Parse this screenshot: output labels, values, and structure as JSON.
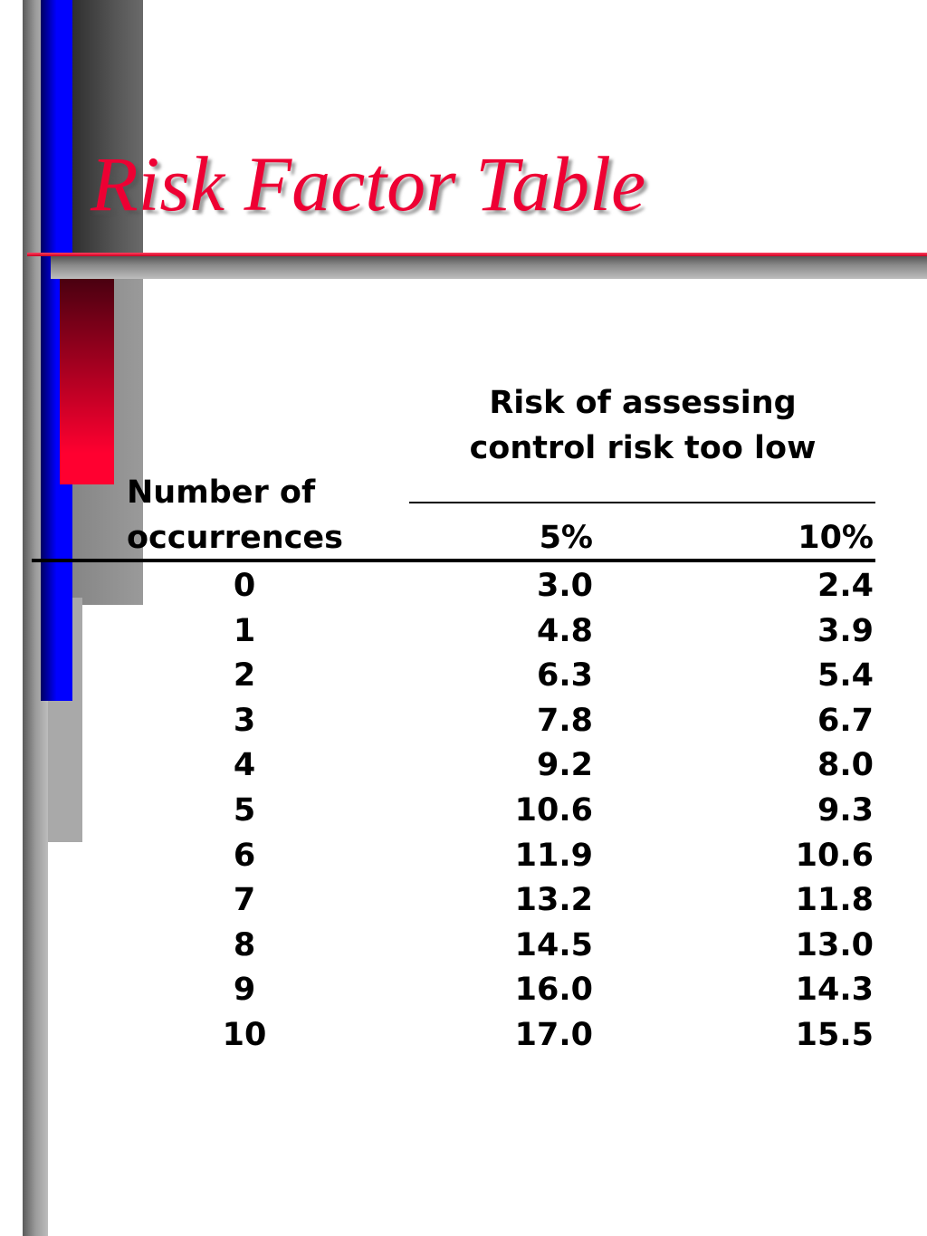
{
  "slide": {
    "title": "Risk Factor Table"
  },
  "table": {
    "group_header_line1": "Risk of assessing",
    "group_header_line2": "control risk too low",
    "row_header_line1": "Number of",
    "row_header_line2": "occurrences",
    "columns": [
      "5%",
      "10%"
    ],
    "rows": [
      {
        "occurrences": "0",
        "risk_5": "3.0",
        "risk_10": "2.4"
      },
      {
        "occurrences": "1",
        "risk_5": "4.8",
        "risk_10": "3.9"
      },
      {
        "occurrences": "2",
        "risk_5": "6.3",
        "risk_10": "5.4"
      },
      {
        "occurrences": "3",
        "risk_5": "7.8",
        "risk_10": "6.7"
      },
      {
        "occurrences": "4",
        "risk_5": "9.2",
        "risk_10": "8.0"
      },
      {
        "occurrences": "5",
        "risk_5": "10.6",
        "risk_10": "9.3"
      },
      {
        "occurrences": "6",
        "risk_5": "11.9",
        "risk_10": "10.6"
      },
      {
        "occurrences": "7",
        "risk_5": "13.2",
        "risk_10": "11.8"
      },
      {
        "occurrences": "8",
        "risk_5": "14.5",
        "risk_10": "13.0"
      },
      {
        "occurrences": "9",
        "risk_5": "16.0",
        "risk_10": "14.3"
      },
      {
        "occurrences": "10",
        "risk_5": "17.0",
        "risk_10": "15.5"
      }
    ]
  },
  "theme": {
    "title_color": "#ee0033",
    "accent_blue": "#0000ff",
    "accent_red": "#ff0030"
  }
}
